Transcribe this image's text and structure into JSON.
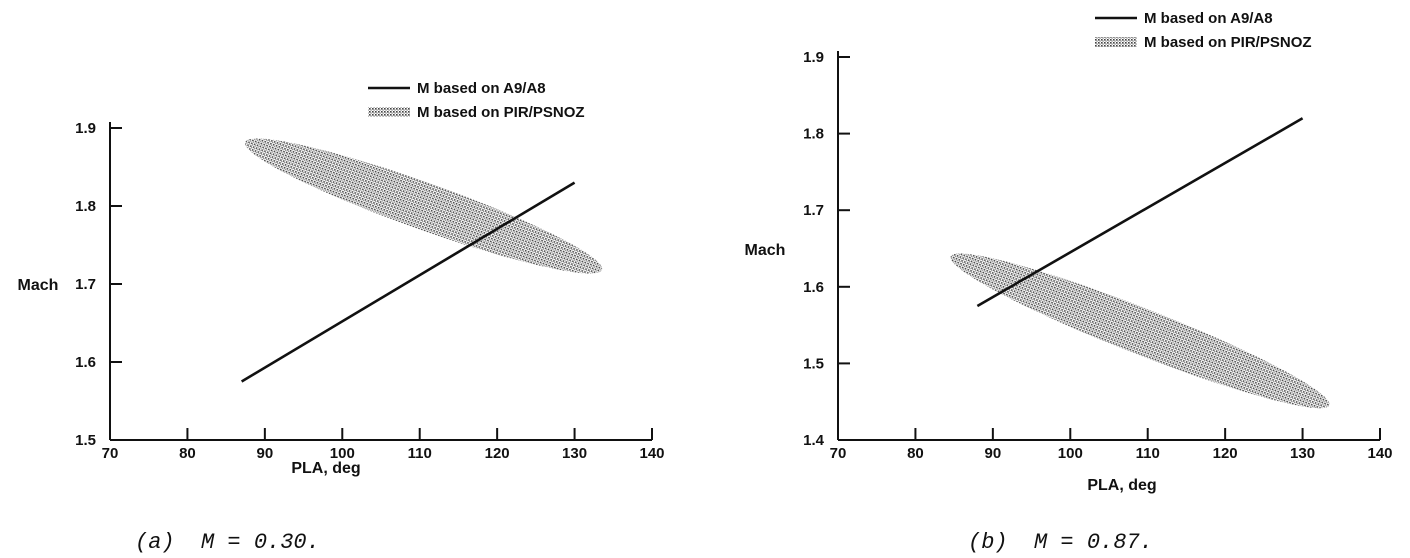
{
  "chart_data": [
    {
      "type": "line",
      "caption": "(a)  M = 0.30.",
      "xlabel": "PLA, deg",
      "ylabel": "Mach",
      "xlim": [
        70,
        140
      ],
      "ylim": [
        1.5,
        1.9
      ],
      "x_ticks": [
        "70",
        "80",
        "90",
        "100",
        "110",
        "120",
        "130",
        "140"
      ],
      "y_ticks": [
        "1.5",
        "1.6",
        "1.7",
        "1.8",
        "1.9"
      ],
      "legend": [
        "M based on A9/A8",
        "M based on PIR/PSNOZ"
      ],
      "legend_position": "top-right",
      "grid": false,
      "series": [
        {
          "name": "M based on A9/A8",
          "style": "line",
          "x": [
            87,
            130
          ],
          "y": [
            1.575,
            1.83
          ]
        },
        {
          "name": "M based on PIR/PSNOZ",
          "style": "shaded-band",
          "center_x": [
            95,
            108,
            120,
            126
          ],
          "center_y": [
            1.855,
            1.81,
            1.765,
            1.745
          ],
          "half_thickness_mach": 0.03
        }
      ]
    },
    {
      "type": "line",
      "caption": "(b)  M = 0.87.",
      "xlabel": "PLA, deg",
      "ylabel": "Mach",
      "xlim": [
        70,
        140
      ],
      "ylim": [
        1.4,
        1.9
      ],
      "x_ticks": [
        "70",
        "80",
        "90",
        "100",
        "110",
        "120",
        "130",
        "140"
      ],
      "y_ticks": [
        "1.4",
        "1.5",
        "1.6",
        "1.7",
        "1.8",
        "1.9"
      ],
      "legend": [
        "M based on A9/A8",
        "M based on PIR/PSNOZ"
      ],
      "legend_position": "top-right",
      "grid": false,
      "series": [
        {
          "name": "M based on A9/A8",
          "style": "line",
          "x": [
            88,
            130
          ],
          "y": [
            1.575,
            1.82
          ]
        },
        {
          "name": "M based on PIR/PSNOZ",
          "style": "shaded-band",
          "center_x": [
            92,
            105,
            118,
            126
          ],
          "center_y": [
            1.61,
            1.55,
            1.5,
            1.475
          ],
          "half_thickness_mach": 0.03
        }
      ]
    }
  ]
}
